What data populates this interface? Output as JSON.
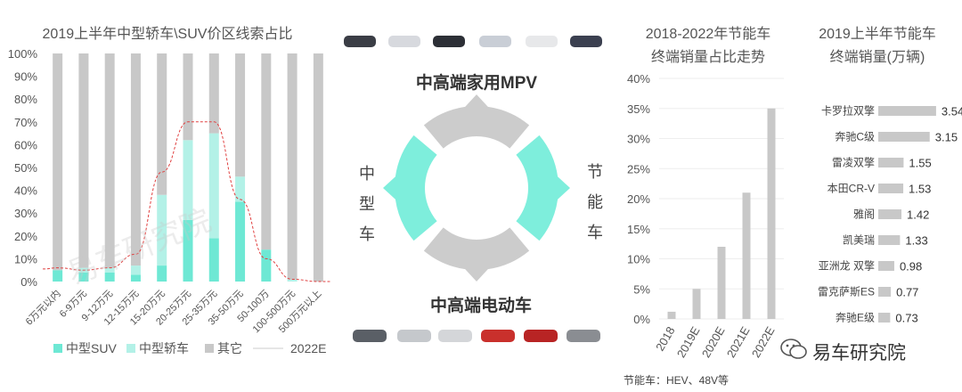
{
  "chart_data": [
    {
      "type": "bar",
      "stacked": true,
      "title": "2019上半年中型轿车\\SUV价区线索占比",
      "categories": [
        "6万元以内",
        "6-9万元",
        "9-12万元",
        "12-15万元",
        "15-20万元",
        "20-25万元",
        "25-35万元",
        "35-50万元",
        "50-100万",
        "100-500万元",
        "500万元以上"
      ],
      "series": [
        {
          "name": "中型SUV",
          "values": [
            5,
            4,
            4,
            3,
            7,
            27,
            19,
            35,
            14,
            0,
            0
          ],
          "color": "#6ee8d4"
        },
        {
          "name": "中型轿车",
          "values": [
            0,
            2,
            2,
            4,
            31,
            35,
            46,
            11,
            0,
            1,
            0
          ],
          "color": "#b3f1e7"
        },
        {
          "name": "其它",
          "values": [
            95,
            94,
            94,
            93,
            62,
            38,
            35,
            54,
            86,
            99,
            100
          ],
          "color": "#c8c8c8"
        }
      ],
      "curve": {
        "name": "2022E",
        "values": [
          6,
          5,
          6,
          12,
          48,
          70,
          70,
          36,
          10,
          1,
          0
        ],
        "color": "#e04040"
      },
      "ylim": [
        0,
        100
      ],
      "yticks": [
        "0%",
        "10%",
        "20%",
        "30%",
        "40%",
        "50%",
        "60%",
        "70%",
        "80%",
        "90%",
        "100%"
      ],
      "legend": "bottom"
    },
    {
      "type": "bar",
      "title_line1": "2018-2022年节能车",
      "title_line2": "终端销量占比走势",
      "categories": [
        "2018",
        "2019E",
        "2020E",
        "2021E",
        "2022E"
      ],
      "values": [
        1.2,
        5,
        12,
        21,
        35
      ],
      "color": "#c8c8c8",
      "ylim": [
        0,
        40
      ],
      "yticks": [
        "0%",
        "5%",
        "10%",
        "15%",
        "20%",
        "25%",
        "30%",
        "35%",
        "40%"
      ],
      "footnote": "节能车：HEV、48V等"
    },
    {
      "type": "bar",
      "orientation": "horizontal",
      "title_line1": "2019上半年节能车",
      "title_line2": "终端销量(万辆)",
      "categories": [
        "卡罗拉双擎",
        "奔驰C级",
        "雷凌双擎",
        "本田CR-V",
        "雅阁",
        "凯美瑞",
        "亚洲龙 双擎",
        "雷克萨斯ES",
        "奔驰E级"
      ],
      "values": [
        3.54,
        3.15,
        1.55,
        1.53,
        1.42,
        1.33,
        0.98,
        0.77,
        0.73
      ],
      "value_labels": [
        "3.54",
        "3.15",
        "1.55",
        "1.53",
        "1.42",
        "1.33",
        "0.98",
        "0.77",
        "0.73"
      ],
      "color": "#c8c8c8",
      "xlim": [
        0,
        3.6
      ]
    }
  ],
  "diagram": {
    "top": "中高端家用MPV",
    "bottom": "中高端电动车",
    "left": "中型车",
    "right": "节能车",
    "colors": {
      "teal": "#7eeedc",
      "gray": "#cccccc"
    }
  },
  "watermark": "易车研究院",
  "brand": {
    "name": "易车研究院"
  }
}
